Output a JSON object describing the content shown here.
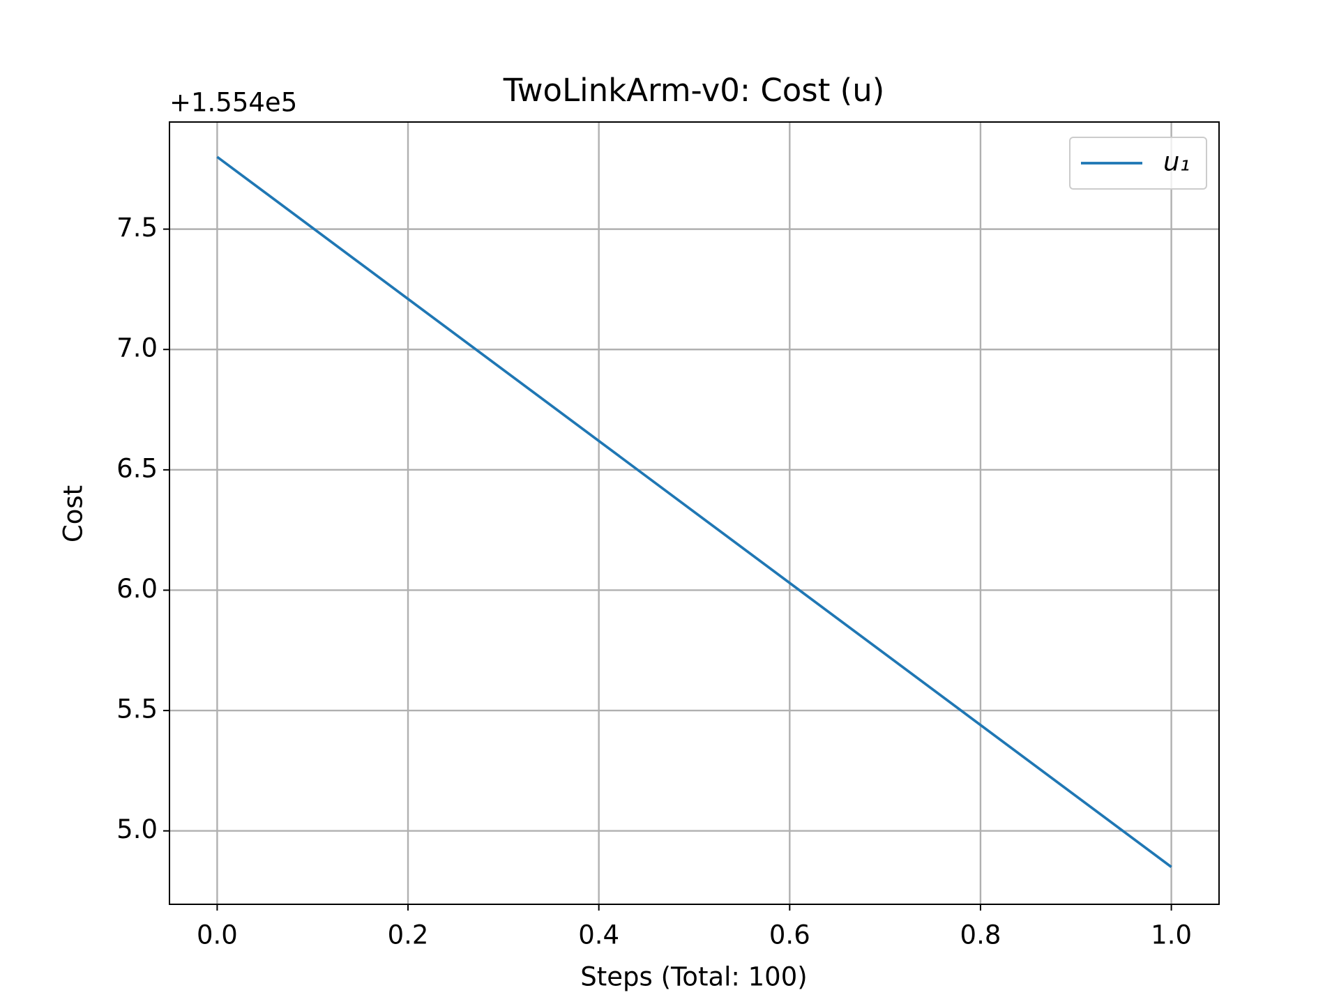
{
  "chart_data": {
    "type": "line",
    "title": "TwoLinkArm-v0: Cost (u)",
    "x_label": "Steps (Total: 100)",
    "y_label": "Cost",
    "y_offset_label": "+1.554e5",
    "x": [
      0,
      1
    ],
    "series": [
      {
        "name": "u₁",
        "color": "#1f77b4",
        "values": [
          7.8,
          4.85
        ]
      }
    ],
    "xlim": [
      -0.05,
      1.05
    ],
    "xticks": [
      {
        "value": 0,
        "label": "0.0"
      },
      {
        "value": 0.2,
        "label": "0.2"
      },
      {
        "value": 0.4,
        "label": "0.4"
      },
      {
        "value": 0.6,
        "label": "0.6"
      },
      {
        "value": 0.8,
        "label": "0.8"
      },
      {
        "value": 1,
        "label": "1.0"
      }
    ],
    "ylim": [
      4.695,
      7.945
    ],
    "yticks": [
      {
        "value": 5,
        "label": "5.0"
      },
      5.5,
      {
        "value": 6,
        "label": "6.0"
      },
      6.5,
      {
        "value": 7,
        "label": "7.0"
      },
      7.5
    ],
    "grid": true,
    "legend": "upper right"
  }
}
